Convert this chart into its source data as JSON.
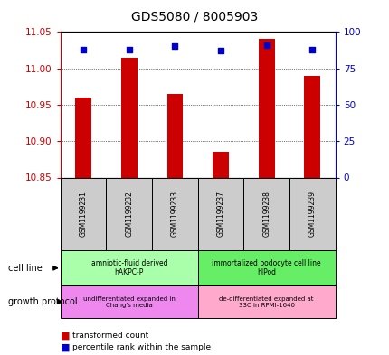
{
  "title": "GDS5080 / 8005903",
  "samples": [
    "GSM1199231",
    "GSM1199232",
    "GSM1199233",
    "GSM1199237",
    "GSM1199238",
    "GSM1199239"
  ],
  "red_values": [
    10.96,
    11.015,
    10.965,
    10.885,
    11.04,
    10.99
  ],
  "blue_values": [
    88,
    88,
    90,
    87,
    91,
    88
  ],
  "ylim_left": [
    10.85,
    11.05
  ],
  "ylim_right": [
    0,
    100
  ],
  "yticks_left": [
    10.85,
    10.9,
    10.95,
    11.0,
    11.05
  ],
  "yticks_right": [
    0,
    25,
    50,
    75,
    100
  ],
  "cell_line_groups": [
    {
      "label": "amniotic-fluid derived\nhAKPC-P",
      "color": "#aaffaa"
    },
    {
      "label": "immortalized podocyte cell line\nhIPod",
      "color": "#66ee66"
    }
  ],
  "growth_protocol_groups": [
    {
      "label": "undifferentiated expanded in\nChang's media",
      "color": "#ee88ee"
    },
    {
      "label": "de-differentiated expanded at\n33C in RPMI-1640",
      "color": "#ffaacc"
    }
  ],
  "red_color": "#cc0000",
  "blue_color": "#0000cc",
  "left_axis_color": "#cc0000",
  "right_axis_color": "#0000cc",
  "sample_box_color": "#cccccc",
  "bar_width": 0.35
}
